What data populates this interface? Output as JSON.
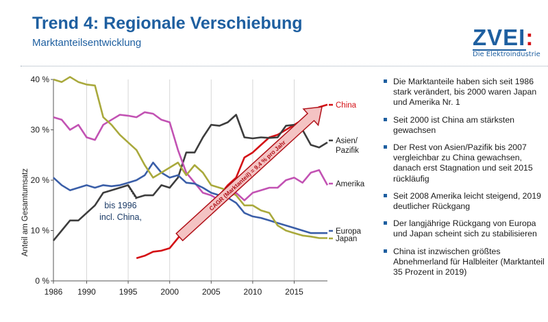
{
  "header": {
    "title": "Trend 4: Regionale Verschiebung",
    "subtitle": "Marktanteilsentwicklung"
  },
  "logo": {
    "text": "ZVEI",
    "colon": ":",
    "tagline": "Die Elektroindustrie"
  },
  "colors": {
    "title": "#1e5fa0",
    "china": "#d40f14",
    "asia": "#3d3d3d",
    "america": "#c252b3",
    "europe": "#3a5ea8",
    "japan": "#a9a93c",
    "arrow_fill": "#f4c3c3",
    "arrow_stroke": "#b01018"
  },
  "chart_data": {
    "type": "line",
    "title": "Marktanteilsentwicklung",
    "xlabel": "",
    "ylabel": "Anteil am Gesamtumsatz",
    "xlim": [
      1986,
      2019
    ],
    "ylim": [
      0,
      40
    ],
    "xticks": [
      1986,
      1990,
      1995,
      2000,
      2005,
      2010,
      2015
    ],
    "xtick_labels": [
      "1986",
      "1990",
      "1995",
      "2000",
      "2005",
      "2010",
      "2015"
    ],
    "yticks": [
      0,
      10,
      20,
      30,
      40
    ],
    "ytick_labels": [
      "0 %",
      "10 %",
      "20 %",
      "30 %",
      "40 %"
    ],
    "grid": "vertical",
    "series": [
      {
        "name": "China",
        "key": "china",
        "x": [
          1996,
          1997,
          1998,
          1999,
          2000,
          2001,
          2002,
          2003,
          2004,
          2005,
          2006,
          2007,
          2008,
          2009,
          2010,
          2011,
          2012,
          2013,
          2014,
          2015,
          2016,
          2017,
          2018,
          2019
        ],
        "y": [
          4.5,
          5.0,
          5.8,
          6.0,
          6.5,
          8.5,
          10.5,
          12.5,
          14.0,
          15.5,
          17.0,
          19.0,
          20.5,
          24.5,
          25.5,
          27.0,
          28.5,
          29.0,
          30.0,
          31.0,
          32.0,
          33.5,
          34.5,
          35.0
        ]
      },
      {
        "name": "Asien/ Pazifik",
        "key": "asia",
        "x": [
          1986,
          1987,
          1988,
          1989,
          1990,
          1991,
          1992,
          1993,
          1994,
          1995,
          1996,
          1997,
          1998,
          1999,
          2000,
          2001,
          2002,
          2003,
          2004,
          2005,
          2006,
          2007,
          2008,
          2009,
          2010,
          2011,
          2012,
          2013,
          2014,
          2015,
          2016,
          2017,
          2018,
          2019
        ],
        "y": [
          8.0,
          10.0,
          12.0,
          12.0,
          13.5,
          15.0,
          17.5,
          18.0,
          18.5,
          19.0,
          16.5,
          17.0,
          17.0,
          19.0,
          18.5,
          20.5,
          25.5,
          25.5,
          28.5,
          31.0,
          30.8,
          31.5,
          33.0,
          28.5,
          28.3,
          28.5,
          28.4,
          28.5,
          30.8,
          31.0,
          30.0,
          27.0,
          26.5,
          27.5
        ]
      },
      {
        "name": "Amerika",
        "key": "america",
        "x": [
          1986,
          1987,
          1988,
          1989,
          1990,
          1991,
          1992,
          1993,
          1994,
          1995,
          1996,
          1997,
          1998,
          1999,
          2000,
          2001,
          2002,
          2003,
          2004,
          2005,
          2006,
          2007,
          2008,
          2009,
          2010,
          2011,
          2012,
          2013,
          2014,
          2015,
          2016,
          2017,
          2018,
          2019
        ],
        "y": [
          32.5,
          32.0,
          30.0,
          31.0,
          28.5,
          28.0,
          31.0,
          32.0,
          33.0,
          32.8,
          32.5,
          33.5,
          33.2,
          32.0,
          31.5,
          26.0,
          21.5,
          19.5,
          17.5,
          17.0,
          16.0,
          16.5,
          17.5,
          16.0,
          17.5,
          18.0,
          18.5,
          18.5,
          20.0,
          20.5,
          19.5,
          21.5,
          22.0,
          19.0
        ]
      },
      {
        "name": "Europa",
        "key": "europe",
        "x": [
          1986,
          1987,
          1988,
          1989,
          1990,
          1991,
          1992,
          1993,
          1994,
          1995,
          1996,
          1997,
          1998,
          1999,
          2000,
          2001,
          2002,
          2003,
          2004,
          2005,
          2006,
          2007,
          2008,
          2009,
          2010,
          2011,
          2012,
          2013,
          2014,
          2015,
          2016,
          2017,
          2018,
          2019
        ],
        "y": [
          20.5,
          19.0,
          18.0,
          18.5,
          19.0,
          18.5,
          19.0,
          18.8,
          19.0,
          19.5,
          20.0,
          21.0,
          23.5,
          21.5,
          20.5,
          21.0,
          19.5,
          19.3,
          18.5,
          17.5,
          17.0,
          16.5,
          15.5,
          13.5,
          12.8,
          12.5,
          12.0,
          11.5,
          11.0,
          10.5,
          10.0,
          9.5,
          9.5,
          9.5
        ]
      },
      {
        "name": "Japan",
        "key": "japan",
        "x": [
          1986,
          1987,
          1988,
          1989,
          1990,
          1991,
          1992,
          1993,
          1994,
          1995,
          1996,
          1997,
          1998,
          1999,
          2000,
          2001,
          2002,
          2003,
          2004,
          2005,
          2006,
          2007,
          2008,
          2009,
          2010,
          2011,
          2012,
          2013,
          2014,
          2015,
          2016,
          2017,
          2018,
          2019
        ],
        "y": [
          40.0,
          39.5,
          40.5,
          39.5,
          39.0,
          38.8,
          32.5,
          31.0,
          29.0,
          27.5,
          26.0,
          23.0,
          20.5,
          21.5,
          22.5,
          23.5,
          21.0,
          23.0,
          21.5,
          19.0,
          18.5,
          18.0,
          17.0,
          15.0,
          15.0,
          14.0,
          13.5,
          11.0,
          10.0,
          9.5,
          9.0,
          8.8,
          8.5,
          8.5
        ]
      }
    ],
    "annotations": {
      "bis1996_line1": "bis 1996",
      "bis1996_line2": "incl. China,",
      "cagr": "CAGR (Marktanteil) = 9,4 % pro Jahr"
    },
    "labels": {
      "china": "China",
      "asia_line1": "Asien/",
      "asia_line2": "Pazifik",
      "america": "Amerika",
      "europe": "Europa",
      "japan": "Japan"
    }
  },
  "bullets": [
    "Die Marktanteile haben sich seit 1986 stark verändert, bis 2000 waren Japan und Amerika Nr. 1",
    "Seit 2000 ist China am stärksten gewachsen",
    "Der Rest von Asien/Pazifik bis 2007 vergleichbar zu China gewachsen, danach erst Stagnation und seit 2015 rückläufig",
    "Seit 2008 Amerika leicht steigend, 2019 deutlicher Rückgang",
    "Der langjährige Rückgang von Europa und Japan scheint sich zu stabilisieren",
    "China ist inzwischen größtes Abnehmerland für Halbleiter (Marktanteil 35 Prozent in 2019)"
  ]
}
